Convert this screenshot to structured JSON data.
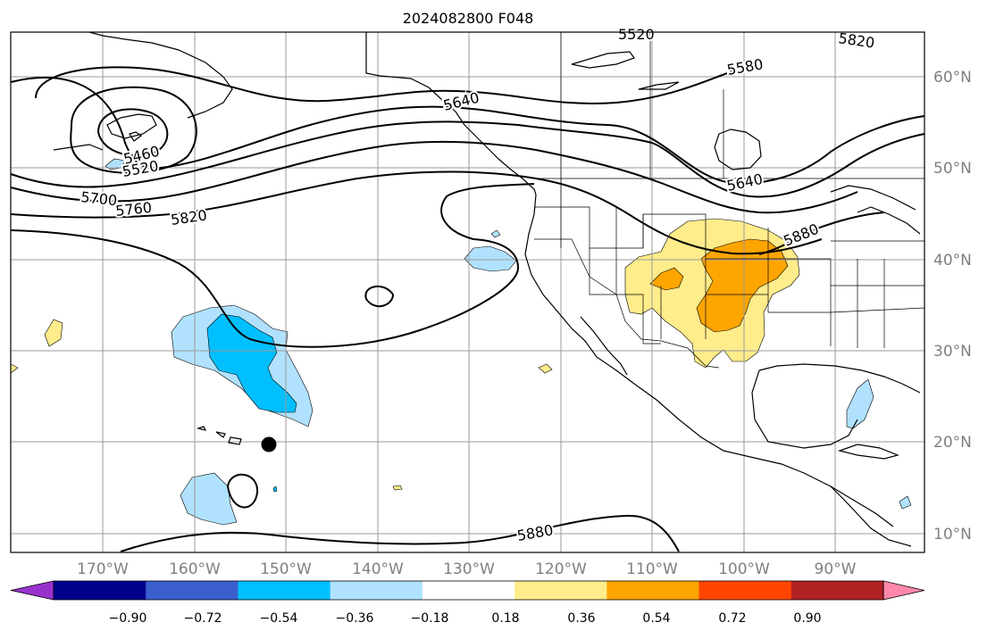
{
  "title": "2024082800 F048",
  "lat_labels": [
    "60°N",
    "50°N",
    "40°N",
    "30°N",
    "20°N",
    "10°N"
  ],
  "lon_labels": [
    "170°W",
    "160°W",
    "150°W",
    "140°W",
    "130°W",
    "120°W",
    "110°W",
    "100°W",
    "90°W"
  ],
  "contour_labels": [
    "5460",
    "5520",
    "5580",
    "5640",
    "5700",
    "5760",
    "5820",
    "5880"
  ],
  "colorbar": {
    "ticks": [
      "−0.90",
      "−0.72",
      "−0.54",
      "−0.36",
      "−0.18",
      "0.18",
      "0.36",
      "0.54",
      "0.72",
      "0.90"
    ],
    "colors": [
      "#9932cc",
      "#00008b",
      "#3a5fcd",
      "#00bfff",
      "#b0e2ff",
      "#ffffff",
      "#ffec8b",
      "#ffa500",
      "#ff4500",
      "#b22222",
      "#ff88aa"
    ]
  },
  "fill_colors": {
    "neg_weak": "#b0e2ff",
    "neg_mid": "#00bfff",
    "pos_weak": "#ffec8b",
    "pos_mid": "#ffa500"
  },
  "marker": "black-dot"
}
